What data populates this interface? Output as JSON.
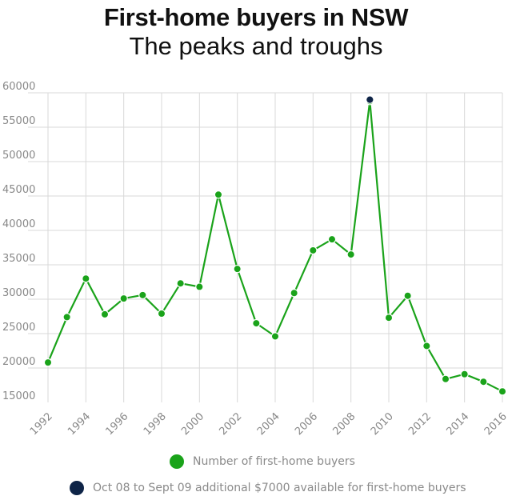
{
  "title": "First-home buyers in NSW",
  "subtitle": "The peaks and troughs",
  "colors": {
    "series": "#1aa31a",
    "highlight": "#0e2447",
    "grid": "#d9d9d9",
    "tick_text": "#888888"
  },
  "legend": {
    "series_label": "Number of first-home buyers",
    "highlight_label": "Oct 08 to Sept 09 additional $7000 available for first-home buyers"
  },
  "chart_data": {
    "type": "line",
    "title": "First-home buyers in NSW",
    "subtitle": "The peaks and troughs",
    "xlabel": "",
    "ylabel": "",
    "xlim": [
      1992,
      2016
    ],
    "ylim": [
      15000,
      60000
    ],
    "yticks": [
      15000,
      20000,
      25000,
      30000,
      35000,
      40000,
      45000,
      50000,
      55000,
      60000
    ],
    "xticks": [
      1992,
      1994,
      1996,
      1998,
      2000,
      2002,
      2004,
      2006,
      2008,
      2010,
      2012,
      2014,
      2016
    ],
    "grid": true,
    "legend_position": "bottom",
    "series": [
      {
        "name": "Number of first-home buyers",
        "x": [
          1992,
          1993,
          1994,
          1995,
          1996,
          1997,
          1998,
          1999,
          2000,
          2001,
          2002,
          2003,
          2004,
          2005,
          2006,
          2007,
          2008,
          2009,
          2010,
          2011,
          2012,
          2013,
          2014,
          2015,
          2016
        ],
        "y": [
          20800,
          27400,
          33000,
          27800,
          30100,
          30600,
          27900,
          32300,
          31800,
          45200,
          34400,
          26500,
          24600,
          30900,
          37100,
          38700,
          36500,
          58800,
          27300,
          30500,
          23200,
          18400,
          19100,
          18000,
          16600
        ]
      }
    ],
    "highlight": {
      "label": "Oct 08 to Sept 09 additional $7000 available for first-home buyers",
      "x": 2009,
      "y": 59000
    }
  }
}
